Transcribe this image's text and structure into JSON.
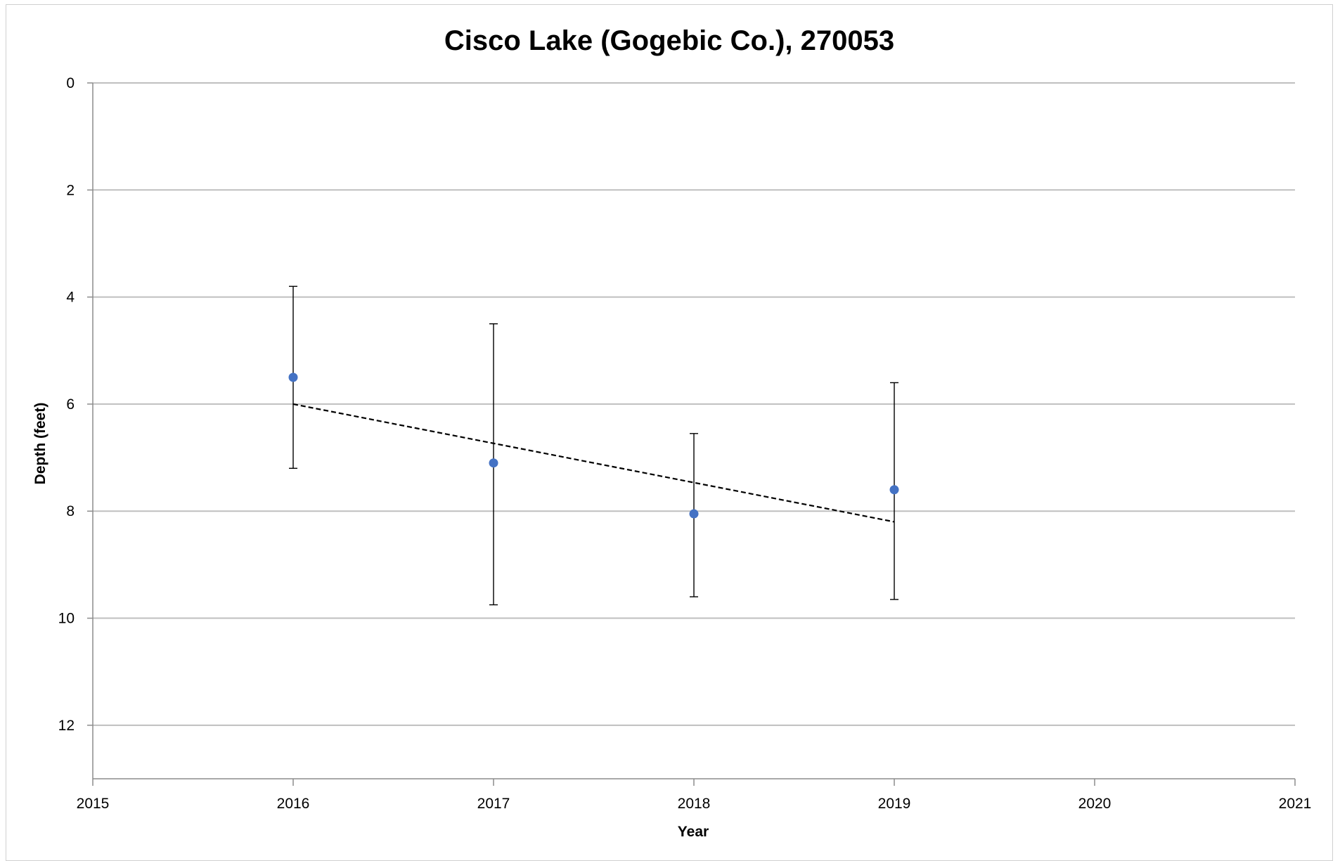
{
  "chart_data": {
    "type": "scatter",
    "title": "Cisco Lake (Gogebic Co.), 270053",
    "xlabel": "Year",
    "ylabel": "Depth (feet)",
    "xlim": [
      2015,
      2021
    ],
    "ylim": [
      0,
      13
    ],
    "y_inverted": true,
    "x_ticks": [
      "2015",
      "2016",
      "2017",
      "2018",
      "2019",
      "2020",
      "2021"
    ],
    "y_ticks": [
      "0",
      "2",
      "4",
      "6",
      "8",
      "10",
      "12"
    ],
    "grid": "horizontal",
    "marker_color": "#4472C4",
    "points": [
      {
        "x": 2016,
        "y": 5.5,
        "err_low": 3.8,
        "err_high": 7.2
      },
      {
        "x": 2017,
        "y": 7.1,
        "err_low": 4.5,
        "err_high": 9.75
      },
      {
        "x": 2018,
        "y": 8.05,
        "err_low": 6.55,
        "err_high": 9.6
      },
      {
        "x": 2019,
        "y": 7.6,
        "err_low": 5.6,
        "err_high": 9.65
      }
    ],
    "trendline": {
      "style": "dashed",
      "x": [
        2016,
        2019
      ],
      "y": [
        6.0,
        8.2
      ]
    }
  }
}
